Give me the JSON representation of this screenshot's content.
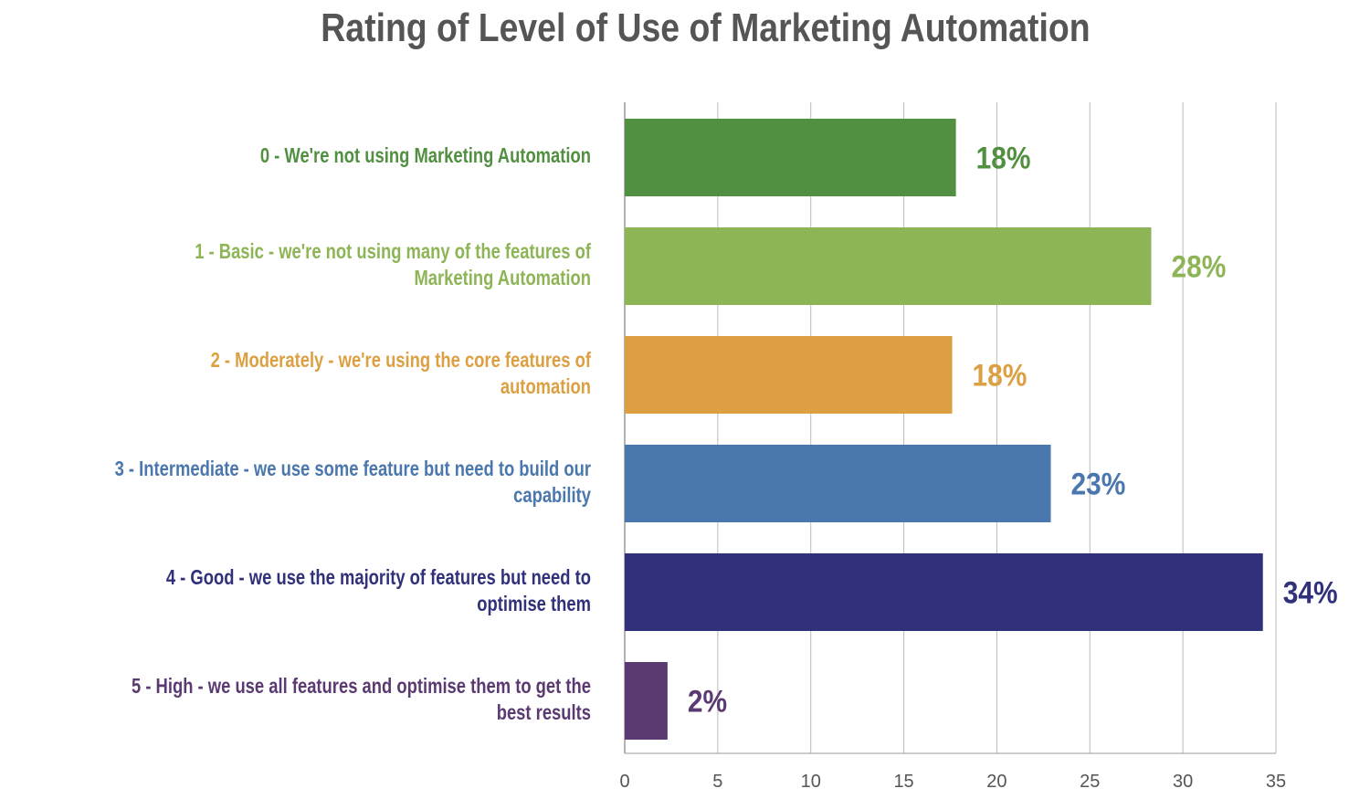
{
  "chart_data": {
    "type": "bar",
    "orientation": "horizontal",
    "title": "Rating of Level of Use of Marketing Automation",
    "categories": [
      "0  - We're not using Marketing Automation",
      "1 - Basic - we're not using many of the features of Marketing Automation",
      "2 - Moderately - we're using the core features of automation",
      "3 - Intermediate - we use some feature but need to build our capability",
      "4 - Good - we use the majority of features but need to optimise them",
      "5 - High - we use all features and optimise them to get the best results"
    ],
    "category_lines": [
      [
        "0  - We're not using Marketing Automation"
      ],
      [
        "1 - Basic - we're not using many of the features of",
        "Marketing Automation"
      ],
      [
        "2 - Moderately - we're using the core features of",
        "automation"
      ],
      [
        "3 - Intermediate - we use some feature but need to build our",
        "capability"
      ],
      [
        "4 - Good - we use the majority of features but need to",
        "optimise them"
      ],
      [
        "5 - High - we use all features and optimise them to get the",
        "best results"
      ]
    ],
    "values": [
      17.8,
      28.3,
      17.6,
      22.9,
      34.3,
      2.3
    ],
    "data_labels": [
      "18%",
      "28%",
      "18%",
      "23%",
      "34%",
      "2%"
    ],
    "colors": [
      "#518f41",
      "#8db556",
      "#dca042",
      "#4a77ad",
      "#30317a",
      "#5b3a72"
    ],
    "label_colors": [
      "#518f41",
      "#8db556",
      "#dca042",
      "#4a77ad",
      "#30317a",
      "#5b3a72"
    ],
    "xlim": [
      0,
      35
    ],
    "xticks": [
      "0",
      "5",
      "10",
      "15",
      "20",
      "25",
      "30",
      "35"
    ],
    "xlabel": "",
    "ylabel": "",
    "grid": true,
    "legend": "none"
  }
}
